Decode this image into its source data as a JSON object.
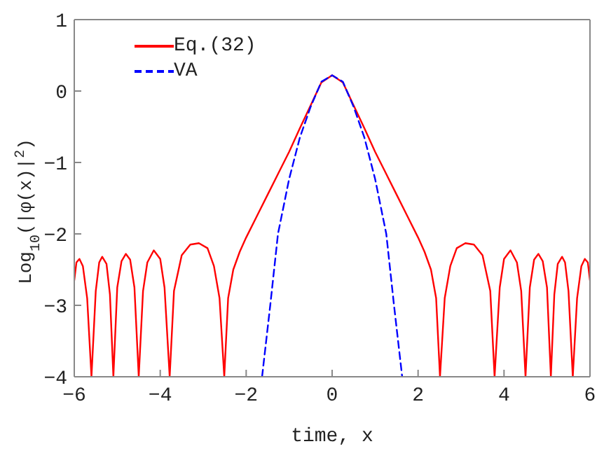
{
  "chart_data": {
    "type": "line",
    "xlabel": "time, x",
    "ylabel": "Log$_{10}$(|φ(x)|$^{2}$)",
    "xlim": [
      -6,
      6
    ],
    "xticks": [
      -6,
      -4,
      -2,
      0,
      2,
      4,
      6
    ],
    "ylim": [
      -4,
      1
    ],
    "yticks": [
      -4,
      -3,
      -2,
      -1,
      0,
      1
    ],
    "legend": "top left",
    "marker": "none",
    "series": [
      {
        "name": "Eq.(32)",
        "color": "#ff0000",
        "line_style": "solid",
        "x": [
          -6,
          -5.95,
          -5.88,
          -5.8,
          -5.7,
          -5.6,
          -5.5,
          -5.42,
          -5.35,
          -5.25,
          -5.17,
          -5.09,
          -5,
          -4.9,
          -4.8,
          -4.7,
          -4.6,
          -4.5,
          -4.4,
          -4.3,
          -4.15,
          -4,
          -3.9,
          -3.78,
          -3.68,
          -3.5,
          -3.3,
          -3.1,
          -2.9,
          -2.75,
          -2.62,
          -2.51,
          -2.42,
          -2.3,
          -2.15,
          -2,
          -1.75,
          -1.5,
          -1.25,
          -1,
          -0.75,
          -0.5,
          -0.25,
          0,
          0.25,
          0.5,
          0.75,
          1,
          1.25,
          1.5,
          1.75,
          2,
          2.15,
          2.3,
          2.42,
          2.51,
          2.62,
          2.75,
          2.9,
          3.1,
          3.3,
          3.5,
          3.68,
          3.78,
          3.9,
          4,
          4.15,
          4.3,
          4.4,
          4.5,
          4.6,
          4.7,
          4.8,
          4.9,
          5,
          5.09,
          5.17,
          5.25,
          5.35,
          5.42,
          5.5,
          5.6,
          5.7,
          5.8,
          5.88,
          5.95,
          6
        ],
        "values": [
          -2.65,
          -2.4,
          -2.35,
          -2.45,
          -2.9,
          -4,
          -2.8,
          -2.4,
          -2.32,
          -2.42,
          -2.85,
          -4,
          -2.75,
          -2.38,
          -2.28,
          -2.36,
          -2.75,
          -4,
          -2.8,
          -2.4,
          -2.23,
          -2.35,
          -2.75,
          -4,
          -2.8,
          -2.3,
          -2.15,
          -2.13,
          -2.2,
          -2.45,
          -2.9,
          -4,
          -2.9,
          -2.5,
          -2.25,
          -2.05,
          -1.75,
          -1.45,
          -1.15,
          -0.85,
          -0.52,
          -0.2,
          0.12,
          0.22,
          0.12,
          -0.2,
          -0.52,
          -0.85,
          -1.15,
          -1.45,
          -1.75,
          -2.05,
          -2.25,
          -2.5,
          -2.9,
          -4,
          -2.9,
          -2.45,
          -2.2,
          -2.13,
          -2.15,
          -2.3,
          -2.8,
          -4,
          -2.75,
          -2.35,
          -2.23,
          -2.4,
          -2.8,
          -4,
          -2.75,
          -2.36,
          -2.28,
          -2.38,
          -2.75,
          -4,
          -2.85,
          -2.42,
          -2.32,
          -2.4,
          -2.8,
          -4,
          -2.9,
          -2.45,
          -2.35,
          -2.4,
          -2.65
        ]
      },
      {
        "name": "VA",
        "color": "#0000ff",
        "line_style": "dashed",
        "x": [
          -1.63,
          -1.44,
          -1.26,
          -1,
          -0.75,
          -0.5,
          -0.25,
          0,
          0.25,
          0.5,
          0.75,
          1,
          1.26,
          1.44,
          1.63
        ],
        "values": [
          -4,
          -3,
          -2,
          -1.23,
          -0.65,
          -0.22,
          0.13,
          0.22,
          0.13,
          -0.22,
          -0.65,
          -1.23,
          -2,
          -3,
          -4
        ]
      }
    ]
  }
}
